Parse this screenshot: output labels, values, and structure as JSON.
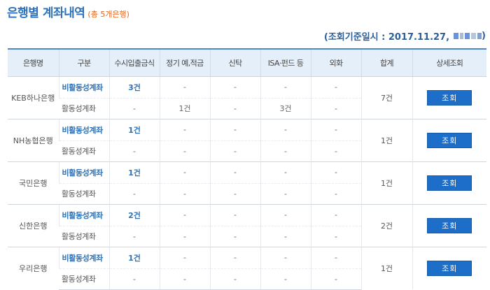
{
  "page": {
    "title": "은행별 계좌내역",
    "subtitle": "(총 5개은행)",
    "query_date": "(조회기준일시 : 2017.11.27,",
    "query_date_close": ")"
  },
  "table": {
    "headers": [
      "은행명",
      "구분",
      "수시입출금식",
      "정기 예,적금",
      "신탁",
      "ISA·펀드 등",
      "외화",
      "합계",
      "상세조회"
    ],
    "detail_button": "조회",
    "banks": [
      {
        "name": "KEB하나은행",
        "total": "7건",
        "rows": [
          {
            "type": "비활동성계좌",
            "cells": [
              "3건",
              "-",
              "-",
              "-",
              "-"
            ]
          },
          {
            "type": "활동성계좌",
            "cells": [
              "-",
              "1건",
              "-",
              "3건",
              "-"
            ]
          }
        ]
      },
      {
        "name": "NH농협은행",
        "total": "1건",
        "rows": [
          {
            "type": "비활동성계좌",
            "cells": [
              "1건",
              "-",
              "-",
              "-",
              "-"
            ]
          },
          {
            "type": "활동성계좌",
            "cells": [
              "-",
              "-",
              "-",
              "-",
              "-"
            ]
          }
        ]
      },
      {
        "name": "국민은행",
        "total": "1건",
        "rows": [
          {
            "type": "비활동성계좌",
            "cells": [
              "1건",
              "-",
              "-",
              "-",
              "-"
            ]
          },
          {
            "type": "활동성계좌",
            "cells": [
              "-",
              "-",
              "-",
              "-",
              "-"
            ]
          }
        ]
      },
      {
        "name": "신한은행",
        "total": "2건",
        "rows": [
          {
            "type": "비활동성계좌",
            "cells": [
              "2건",
              "-",
              "-",
              "-",
              "-"
            ]
          },
          {
            "type": "활동성계좌",
            "cells": [
              "-",
              "-",
              "-",
              "-",
              "-"
            ]
          }
        ]
      },
      {
        "name": "우리은행",
        "total": "1건",
        "rows": [
          {
            "type": "비활동성계좌",
            "cells": [
              "1건",
              "-",
              "-",
              "-",
              "-"
            ]
          },
          {
            "type": "활동성계좌",
            "cells": [
              "-",
              "-",
              "-",
              "-",
              "-"
            ]
          }
        ]
      }
    ]
  },
  "colors": {
    "accent_blue": "#2d72b8",
    "subtitle_orange": "#e0661e",
    "button_blue": "#1c6ec9",
    "header_bg": "#e5eff9"
  }
}
